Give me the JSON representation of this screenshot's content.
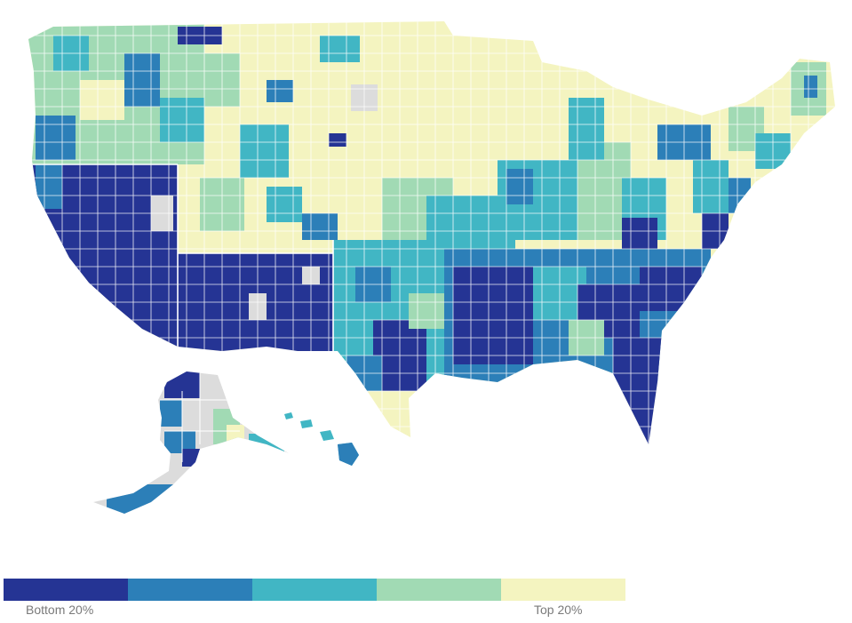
{
  "map": {
    "region": "United States counties",
    "palette": {
      "q1": "#253494",
      "q2": "#2c7fb8",
      "q3": "#41b6c4",
      "q4": "#a1dab4",
      "q5": "#f4f4c0",
      "no_data": "#dcdcdc",
      "border": "#ffffff"
    }
  },
  "legend": {
    "swatches": [
      {
        "color": "#253494"
      },
      {
        "color": "#2c7fb8"
      },
      {
        "color": "#41b6c4"
      },
      {
        "color": "#a1dab4"
      },
      {
        "color": "#f4f4c0"
      }
    ],
    "label_low": "Bottom 20%",
    "label_high": "Top 20%"
  }
}
